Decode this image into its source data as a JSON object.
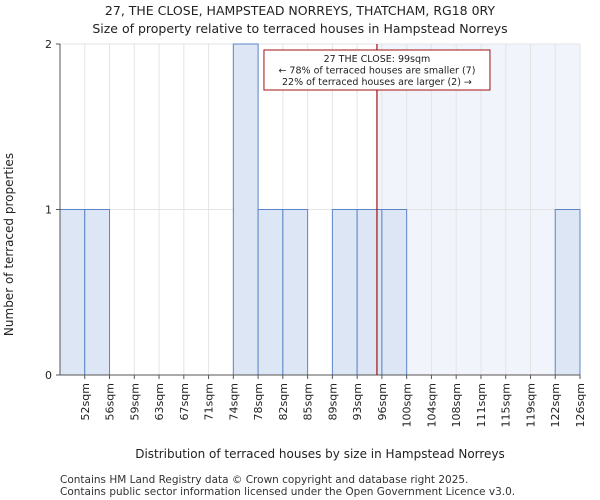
{
  "chart_data": {
    "type": "bar",
    "title": "27, THE CLOSE, HAMPSTEAD NORREYS, THATCHAM, RG18 0RY",
    "subtitle": "Size of property relative to terraced houses in Hampstead Norreys",
    "xlabel": "Distribution of terraced houses by size in Hampstead Norreys",
    "ylabel": "Number of terraced properties",
    "categories": [
      "52sqm",
      "56sqm",
      "59sqm",
      "63sqm",
      "67sqm",
      "71sqm",
      "74sqm",
      "78sqm",
      "82sqm",
      "85sqm",
      "89sqm",
      "93sqm",
      "96sqm",
      "100sqm",
      "104sqm",
      "108sqm",
      "111sqm",
      "115sqm",
      "119sqm",
      "122sqm",
      "126sqm"
    ],
    "values": [
      1,
      1,
      0,
      0,
      0,
      0,
      0,
      2,
      1,
      1,
      0,
      1,
      1,
      1,
      0,
      0,
      0,
      0,
      0,
      0,
      1
    ],
    "ylim": [
      0,
      2
    ],
    "yticks": [
      0,
      1,
      2
    ],
    "marker": {
      "value_label": "99sqm",
      "position_index": 12.8,
      "annotation": [
        "27 THE CLOSE: 99sqm",
        "← 78% of terraced houses are smaller (7)",
        "22% of terraced houses are larger (2) →"
      ]
    },
    "colors": {
      "bar_fill": "#dce6f5",
      "bar_edge": "#5b85c8",
      "marker_line": "#a01010",
      "highlight": "#f2f4fc"
    }
  },
  "footer": {
    "line1": "Contains HM Land Registry data © Crown copyright and database right 2025.",
    "line2": "Contains public sector information licensed under the Open Government Licence v3.0."
  }
}
